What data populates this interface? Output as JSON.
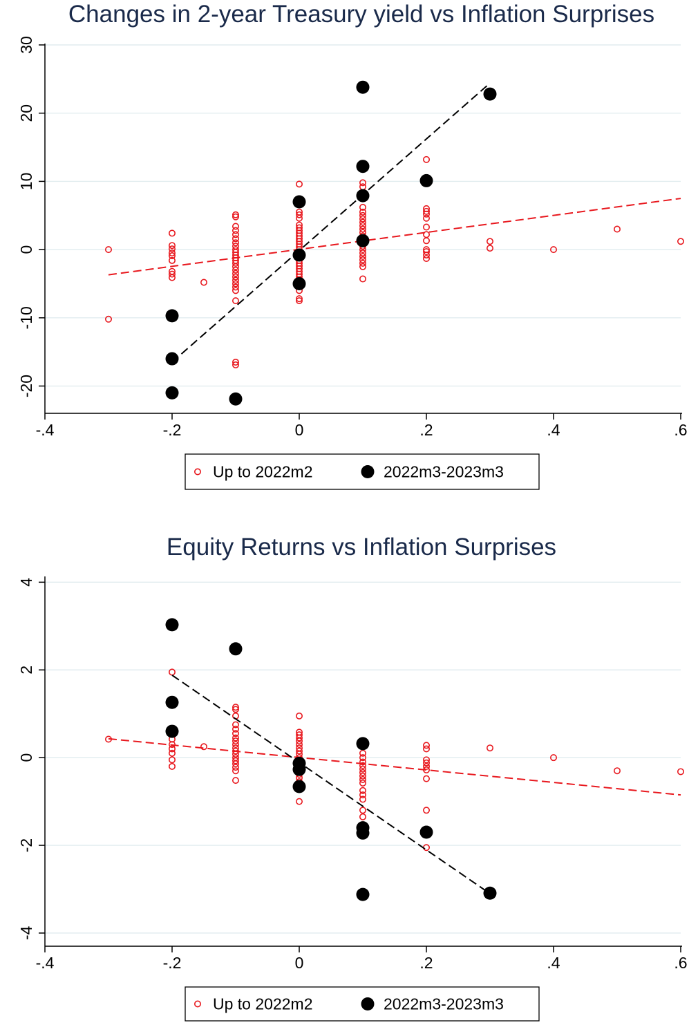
{
  "chart_data": [
    {
      "type": "scatter",
      "title": "Changes in 2-year Treasury yield vs Inflation Surprises",
      "xlabel": "",
      "ylabel": "",
      "xlim": [
        -0.4,
        0.6
      ],
      "ylim": [
        -24,
        30
      ],
      "x_ticks": [
        -0.4,
        -0.2,
        0,
        0.2,
        0.4,
        0.6
      ],
      "x_tick_labels": [
        "-.4",
        "-.2",
        "0",
        ".2",
        ".4",
        ".6"
      ],
      "y_ticks": [
        -20,
        -10,
        0,
        10,
        20,
        30
      ],
      "y_tick_labels": [
        "-20",
        "-10",
        "0",
        "10",
        "20",
        "30"
      ],
      "grid": "horizontal",
      "legend": {
        "placement": "bottom-center"
      },
      "series": [
        {
          "name": "Up to 2022m2",
          "marker": "hollow-circle",
          "color": "#e8181e",
          "points": [
            [
              -0.3,
              0
            ],
            [
              -0.3,
              -10.2
            ],
            [
              -0.2,
              2.4
            ],
            [
              -0.2,
              0.6
            ],
            [
              -0.2,
              0.1
            ],
            [
              -0.2,
              -0.5
            ],
            [
              -0.2,
              -0.9
            ],
            [
              -0.2,
              -1.6
            ],
            [
              -0.2,
              -3.2
            ],
            [
              -0.2,
              -3.6
            ],
            [
              -0.2,
              -4.1
            ],
            [
              -0.15,
              -4.8
            ],
            [
              -0.1,
              5.1
            ],
            [
              -0.1,
              4.8
            ],
            [
              -0.1,
              3.4
            ],
            [
              -0.1,
              2.8
            ],
            [
              -0.1,
              2.2
            ],
            [
              -0.1,
              1.6
            ],
            [
              -0.1,
              1.0
            ],
            [
              -0.1,
              0.5
            ],
            [
              -0.1,
              0.0
            ],
            [
              -0.1,
              -0.4
            ],
            [
              -0.1,
              -0.8
            ],
            [
              -0.1,
              -1.2
            ],
            [
              -0.1,
              -1.6
            ],
            [
              -0.1,
              -2.0
            ],
            [
              -0.1,
              -2.5
            ],
            [
              -0.1,
              -3.0
            ],
            [
              -0.1,
              -3.5
            ],
            [
              -0.1,
              -4.0
            ],
            [
              -0.1,
              -4.5
            ],
            [
              -0.1,
              -5.0
            ],
            [
              -0.1,
              -5.5
            ],
            [
              -0.1,
              -6.0
            ],
            [
              -0.1,
              -7.5
            ],
            [
              -0.1,
              -16.5
            ],
            [
              -0.1,
              -16.9
            ],
            [
              0,
              9.6
            ],
            [
              0,
              5.5
            ],
            [
              0,
              5.1
            ],
            [
              0,
              4.6
            ],
            [
              0,
              3.6
            ],
            [
              0,
              3.2
            ],
            [
              0,
              2.8
            ],
            [
              0,
              2.4
            ],
            [
              0,
              2.0
            ],
            [
              0,
              1.6
            ],
            [
              0,
              1.2
            ],
            [
              0,
              0.8
            ],
            [
              0,
              0.4
            ],
            [
              0,
              0.0
            ],
            [
              0,
              -0.4
            ],
            [
              0,
              -0.8
            ],
            [
              0,
              -1.2
            ],
            [
              0,
              -1.6
            ],
            [
              0,
              -2.0
            ],
            [
              0,
              -2.4
            ],
            [
              0,
              -2.8
            ],
            [
              0,
              -3.2
            ],
            [
              0,
              -3.6
            ],
            [
              0,
              -4.0
            ],
            [
              0,
              -4.4
            ],
            [
              0,
              -4.8
            ],
            [
              0,
              -5.4
            ],
            [
              0,
              -6.0
            ],
            [
              0,
              -7.2
            ],
            [
              0,
              -7.5
            ],
            [
              0.1,
              9.8
            ],
            [
              0.1,
              9.2
            ],
            [
              0.1,
              6.2
            ],
            [
              0.1,
              5.5
            ],
            [
              0.1,
              5.0
            ],
            [
              0.1,
              4.5
            ],
            [
              0.1,
              4.0
            ],
            [
              0.1,
              3.5
            ],
            [
              0.1,
              3.0
            ],
            [
              0.1,
              2.5
            ],
            [
              0.1,
              2.0
            ],
            [
              0.1,
              1.5
            ],
            [
              0.1,
              1.0
            ],
            [
              0.1,
              0.5
            ],
            [
              0.1,
              0.0
            ],
            [
              0.1,
              -0.5
            ],
            [
              0.1,
              -1.0
            ],
            [
              0.1,
              -1.5
            ],
            [
              0.1,
              -2.0
            ],
            [
              0.1,
              -2.5
            ],
            [
              0.1,
              -4.3
            ],
            [
              0.2,
              13.2
            ],
            [
              0.2,
              6.0
            ],
            [
              0.2,
              5.6
            ],
            [
              0.2,
              5.2
            ],
            [
              0.2,
              4.6
            ],
            [
              0.2,
              3.3
            ],
            [
              0.2,
              2.2
            ],
            [
              0.2,
              1.3
            ],
            [
              0.2,
              0.0
            ],
            [
              0.2,
              -0.3
            ],
            [
              0.2,
              -0.8
            ],
            [
              0.2,
              -1.3
            ],
            [
              0.3,
              1.2
            ],
            [
              0.3,
              0.2
            ],
            [
              0.4,
              0.0
            ],
            [
              0.5,
              3.0
            ],
            [
              0.6,
              1.2
            ]
          ]
        },
        {
          "name": "2022m3-2023m3",
          "marker": "solid-circle",
          "color": "#000000",
          "points": [
            [
              -0.2,
              -9.7
            ],
            [
              -0.2,
              -16.0
            ],
            [
              -0.2,
              -21.0
            ],
            [
              -0.1,
              -21.9
            ],
            [
              0,
              7.0
            ],
            [
              0,
              -0.8
            ],
            [
              0,
              -5.0
            ],
            [
              0.1,
              23.8
            ],
            [
              0.1,
              12.2
            ],
            [
              0.1,
              7.9
            ],
            [
              0.1,
              1.3
            ],
            [
              0.2,
              10.1
            ],
            [
              0.3,
              22.8
            ]
          ]
        }
      ],
      "fit_lines": [
        {
          "series": "Up to 2022m2",
          "color": "#e8181e",
          "style": "dashed",
          "from": [
            -0.3,
            -3.7
          ],
          "to": [
            0.6,
            7.5
          ]
        },
        {
          "series": "2022m3-2023m3",
          "color": "#000000",
          "style": "dashed",
          "from": [
            -0.2,
            -16.5
          ],
          "to": [
            0.3,
            24.4
          ]
        }
      ]
    },
    {
      "type": "scatter",
      "title": "Equity Returns vs Inflation Surprises",
      "xlabel": "",
      "ylabel": "",
      "xlim": [
        -0.4,
        0.6
      ],
      "ylim": [
        -4.3,
        4.1
      ],
      "x_ticks": [
        -0.4,
        -0.2,
        0,
        0.2,
        0.4,
        0.6
      ],
      "x_tick_labels": [
        "-.4",
        "-.2",
        "0",
        ".2",
        ".4",
        ".6"
      ],
      "y_ticks": [
        -4,
        -2,
        0,
        2,
        4
      ],
      "y_tick_labels": [
        "-4",
        "-2",
        "0",
        "2",
        "4"
      ],
      "grid": "horizontal",
      "legend": {
        "placement": "bottom-center"
      },
      "series": [
        {
          "name": "Up to 2022m2",
          "marker": "hollow-circle",
          "color": "#e8181e",
          "points": [
            [
              -0.3,
              0.42
            ],
            [
              -0.2,
              1.95
            ],
            [
              -0.2,
              0.42
            ],
            [
              -0.2,
              0.3
            ],
            [
              -0.2,
              0.2
            ],
            [
              -0.2,
              0.1
            ],
            [
              -0.2,
              -0.05
            ],
            [
              -0.2,
              -0.2
            ],
            [
              -0.15,
              0.25
            ],
            [
              -0.1,
              1.15
            ],
            [
              -0.1,
              1.1
            ],
            [
              -0.1,
              0.95
            ],
            [
              -0.1,
              0.75
            ],
            [
              -0.1,
              0.65
            ],
            [
              -0.1,
              0.55
            ],
            [
              -0.1,
              0.45
            ],
            [
              -0.1,
              0.38
            ],
            [
              -0.1,
              0.3
            ],
            [
              -0.1,
              0.22
            ],
            [
              -0.1,
              0.15
            ],
            [
              -0.1,
              0.08
            ],
            [
              -0.1,
              0.0
            ],
            [
              -0.1,
              -0.07
            ],
            [
              -0.1,
              -0.14
            ],
            [
              -0.1,
              -0.22
            ],
            [
              -0.1,
              -0.3
            ],
            [
              -0.1,
              -0.52
            ],
            [
              0,
              0.95
            ],
            [
              0,
              0.58
            ],
            [
              0,
              0.52
            ],
            [
              0,
              0.45
            ],
            [
              0,
              0.38
            ],
            [
              0,
              0.3
            ],
            [
              0,
              0.22
            ],
            [
              0,
              0.15
            ],
            [
              0,
              0.08
            ],
            [
              0,
              0.0
            ],
            [
              0,
              -0.08
            ],
            [
              0,
              -0.15
            ],
            [
              0,
              -0.22
            ],
            [
              0,
              -0.3
            ],
            [
              0,
              -0.38
            ],
            [
              0,
              -0.46
            ],
            [
              0,
              -0.55
            ],
            [
              0,
              -1.0
            ],
            [
              0.1,
              0.1
            ],
            [
              0.1,
              0.0
            ],
            [
              0.1,
              -0.1
            ],
            [
              0.1,
              -0.18
            ],
            [
              0.1,
              -0.26
            ],
            [
              0.1,
              -0.34
            ],
            [
              0.1,
              -0.42
            ],
            [
              0.1,
              -0.5
            ],
            [
              0.1,
              -0.58
            ],
            [
              0.1,
              -0.75
            ],
            [
              0.1,
              -0.85
            ],
            [
              0.1,
              -0.95
            ],
            [
              0.1,
              -1.2
            ],
            [
              0.1,
              -1.35
            ],
            [
              0.2,
              0.28
            ],
            [
              0.2,
              0.2
            ],
            [
              0.2,
              -0.05
            ],
            [
              0.2,
              -0.12
            ],
            [
              0.2,
              -0.2
            ],
            [
              0.2,
              -0.28
            ],
            [
              0.2,
              -0.48
            ],
            [
              0.2,
              -1.2
            ],
            [
              0.2,
              -2.05
            ],
            [
              0.3,
              0.22
            ],
            [
              0.4,
              0.0
            ],
            [
              0.5,
              -0.3
            ],
            [
              0.6,
              -0.32
            ]
          ]
        },
        {
          "name": "2022m3-2023m3",
          "marker": "solid-circle",
          "color": "#000000",
          "points": [
            [
              -0.2,
              3.03
            ],
            [
              -0.2,
              1.26
            ],
            [
              -0.2,
              0.6
            ],
            [
              -0.1,
              2.48
            ],
            [
              0,
              -0.13
            ],
            [
              0,
              -0.27
            ],
            [
              0,
              -0.66
            ],
            [
              0.1,
              0.32
            ],
            [
              0.1,
              -1.6
            ],
            [
              0.1,
              -1.72
            ],
            [
              0.1,
              -3.12
            ],
            [
              0.2,
              -1.7
            ],
            [
              0.3,
              -3.09
            ]
          ]
        }
      ],
      "fit_lines": [
        {
          "series": "Up to 2022m2",
          "color": "#e8181e",
          "style": "dashed",
          "from": [
            -0.3,
            0.43
          ],
          "to": [
            0.6,
            -0.85
          ]
        },
        {
          "series": "2022m3-2023m3",
          "color": "#000000",
          "style": "dashed",
          "from": [
            -0.2,
            1.88
          ],
          "to": [
            0.3,
            -3.1
          ]
        }
      ]
    }
  ]
}
